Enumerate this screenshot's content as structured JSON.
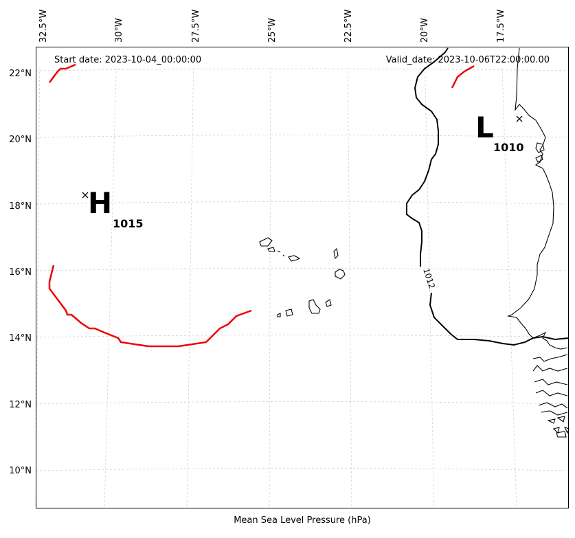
{
  "header": {
    "start_date": "Start date: 2023-10-04_00:00:00",
    "valid_date": "Valid_date: 2023-10-06T22:00:00.00"
  },
  "axis": {
    "xlabel": "Mean Sea Level Pressure (hPa)",
    "lon_ticks": [
      "32.5°W",
      "30°W",
      "27.5°W",
      "25°W",
      "22.5°W",
      "20°W",
      "17.5°W"
    ],
    "lat_ticks": [
      "22°N",
      "20°N",
      "18°N",
      "16°N",
      "14°N",
      "12°N",
      "10°N"
    ]
  },
  "pressure_centers": {
    "high": {
      "letter": "H",
      "value": "1015"
    },
    "low": {
      "letter": "L",
      "value": "1010"
    }
  },
  "contours": {
    "black_label": "1012"
  },
  "colors": {
    "contour_black": "#000000",
    "contour_red": "#ee0000",
    "gridline": "#d0d0d0"
  }
}
